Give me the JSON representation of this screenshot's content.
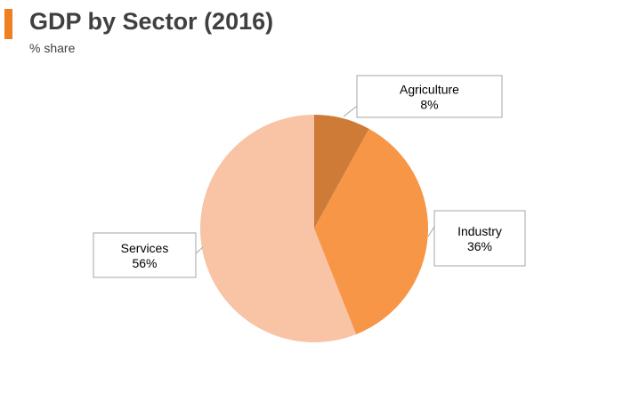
{
  "header": {
    "title": "GDP by Sector (2016)",
    "subtitle": "% share",
    "accent_color": "#f07f23"
  },
  "chart_data": {
    "type": "pie",
    "title": "GDP by Sector (2016)",
    "subtitle": "% share",
    "start_angle_deg": 0,
    "direction": "clockwise",
    "slices": [
      {
        "label": "Agriculture",
        "value": 8,
        "value_label": "8%",
        "color": "#cd7b37"
      },
      {
        "label": "Industry",
        "value": 36,
        "value_label": "36%",
        "color": "#f79646"
      },
      {
        "label": "Services",
        "value": 56,
        "value_label": "56%",
        "color": "#f9c3a6"
      }
    ]
  }
}
